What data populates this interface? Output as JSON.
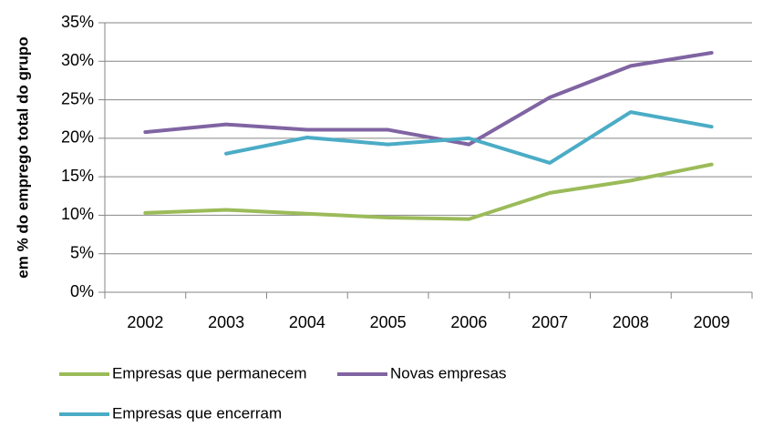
{
  "chart_data": {
    "type": "line",
    "y_label": "em % do emprego total do grupo",
    "categories": [
      "2002",
      "2003",
      "2004",
      "2005",
      "2006",
      "2007",
      "2008",
      "2009"
    ],
    "series": [
      {
        "name": "Empresas que permanecem",
        "color": "#9bbb59",
        "values": [
          10.3,
          10.7,
          10.2,
          9.7,
          9.5,
          12.9,
          14.5,
          16.6
        ]
      },
      {
        "name": "Novas empresas",
        "color": "#8064a2",
        "values": [
          20.8,
          21.8,
          21.1,
          21.1,
          19.2,
          25.3,
          29.4,
          31.1
        ]
      },
      {
        "name": "Empresas que encerram",
        "color": "#4bacc6",
        "values": [
          null,
          18.0,
          20.1,
          19.2,
          20.0,
          16.8,
          23.4,
          21.5
        ]
      }
    ],
    "ylim": [
      0,
      35
    ],
    "yticks": [
      {
        "value": 0,
        "label": "0%"
      },
      {
        "value": 5,
        "label": "5%"
      },
      {
        "value": 10,
        "label": "10%"
      },
      {
        "value": 15,
        "label": "15%"
      },
      {
        "value": 20,
        "label": "20%"
      },
      {
        "value": 25,
        "label": "25%"
      },
      {
        "value": 30,
        "label": "30%"
      },
      {
        "value": 35,
        "label": "35%"
      }
    ],
    "grid": true,
    "legend": "bottom"
  }
}
